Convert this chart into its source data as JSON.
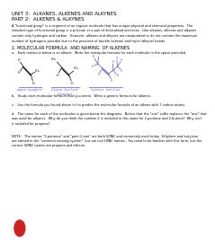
{
  "title_line1": "UNIT 3:  ALKANES, ALKENES AND ALKYNES",
  "title_line2": "PART 2:  ALKENES & ALKYNES",
  "intro_text": "A \"functional group\" is a segment of an organic molecule that has unique physical and chemical properties.  The\nsimplest type of functional group is a pi bond, or a pair of delocalized electrons.  Like alkanes, alkenes and alkynes\ncontain only hydrogen and carbon.  However, alkenes and alkynes are unsaturated or do not contain the maximum\nnumber of hydrogens possible due to the presence of double (alkene) and triple (alkyne) bonds.",
  "section1_title": "1. MOLECULAR FORMULA  AND NAMING  OF ALKENES",
  "section1_a": "a.   Each molecule below is an alkene.  Write the molecular formula for each molecule in the space provided.",
  "mol1_name": "propene  (propylene)",
  "mol2_name": "2-butene  (but-2-ene)\n(2-butylene)",
  "mol3_name": "2-pentene   pent-2-ene",
  "section1_b": "b.   Study each molecular formula that you wrote.  Write a generic formula for alkenes.",
  "section1_c": "c.   Use the formula you found above (c) to predict the molecular formula of an alkene with 7 carbon atoms.",
  "section1_d": "d.   The name for each of the molecules is given below the diagrams.  Notice that the \"ene\" suffix replaces the \"ane\" that\nwas used for alkanes.  Why do you think the number 2 is included in the name for 2-pentene and 2-butene?  Why isn't\nit included for propene?",
  "note_text": "NOTE:   The names \"2-pentene\" and \"pent-2-ene\" are both IUPAC and commonly used today.  Ethylene and butylene\nare named in the \"common naming system\", but are not IUPAC names.  You need to be familiar with this form, but the\ncorrect IUPAC names are propene and ethene.",
  "background": "#ffffff",
  "text_color": "#000000",
  "title_color": "#000000",
  "link_color": "#5555bb",
  "stop_color": "#cc2222",
  "mol_color": "#000000",
  "mol_label_color": "#5555bb"
}
